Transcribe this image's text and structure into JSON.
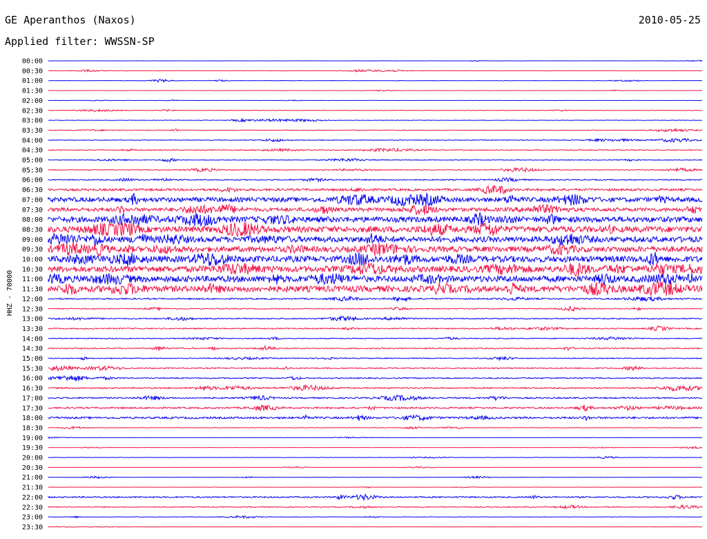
{
  "header": {
    "station": "GE Aperanthos (Naxos)",
    "date": "2010-05-25",
    "filter": "Applied filter: WWSSN-SP"
  },
  "chart_data": {
    "type": "line",
    "ylabel": "HHZ - 70000",
    "line_colors": [
      "#0000ee",
      "#ee1144"
    ],
    "rows": [
      {
        "time": "00:00",
        "activity": 0.05
      },
      {
        "time": "00:30",
        "activity": 0.15
      },
      {
        "time": "01:00",
        "activity": 0.15
      },
      {
        "time": "01:30",
        "activity": 0.08
      },
      {
        "time": "02:00",
        "activity": 0.1
      },
      {
        "time": "02:30",
        "activity": 0.18
      },
      {
        "time": "03:00",
        "activity": 0.15
      },
      {
        "time": "03:30",
        "activity": 0.22
      },
      {
        "time": "04:00",
        "activity": 0.25
      },
      {
        "time": "04:30",
        "activity": 0.3
      },
      {
        "time": "05:00",
        "activity": 0.25
      },
      {
        "time": "05:30",
        "activity": 0.28
      },
      {
        "time": "06:00",
        "activity": 0.35
      },
      {
        "time": "06:30",
        "activity": 0.55
      },
      {
        "time": "07:00",
        "activity": 0.85
      },
      {
        "time": "07:30",
        "activity": 0.75
      },
      {
        "time": "08:00",
        "activity": 0.95
      },
      {
        "time": "08:30",
        "activity": 1.0
      },
      {
        "time": "09:00",
        "activity": 0.95
      },
      {
        "time": "09:30",
        "activity": 0.95
      },
      {
        "time": "10:00",
        "activity": 1.0
      },
      {
        "time": "10:30",
        "activity": 1.0
      },
      {
        "time": "11:00",
        "activity": 1.0
      },
      {
        "time": "11:30",
        "activity": 1.0
      },
      {
        "time": "12:00",
        "activity": 0.4
      },
      {
        "time": "12:30",
        "activity": 0.3
      },
      {
        "time": "13:00",
        "activity": 0.35
      },
      {
        "time": "13:30",
        "activity": 0.35
      },
      {
        "time": "14:00",
        "activity": 0.3
      },
      {
        "time": "14:30",
        "activity": 0.35
      },
      {
        "time": "15:00",
        "activity": 0.3
      },
      {
        "time": "15:30",
        "activity": 0.35
      },
      {
        "time": "16:00",
        "activity": 0.35
      },
      {
        "time": "16:30",
        "activity": 0.4
      },
      {
        "time": "17:00",
        "activity": 0.4
      },
      {
        "time": "17:30",
        "activity": 0.45
      },
      {
        "time": "18:00",
        "activity": 0.5
      },
      {
        "time": "18:30",
        "activity": 0.2
      },
      {
        "time": "19:00",
        "activity": 0.1
      },
      {
        "time": "19:30",
        "activity": 0.1
      },
      {
        "time": "20:00",
        "activity": 0.12
      },
      {
        "time": "20:30",
        "activity": 0.08
      },
      {
        "time": "21:00",
        "activity": 0.12
      },
      {
        "time": "21:30",
        "activity": 0.08
      },
      {
        "time": "22:00",
        "activity": 0.4
      },
      {
        "time": "22:30",
        "activity": 0.3
      },
      {
        "time": "23:00",
        "activity": 0.15
      },
      {
        "time": "23:30",
        "activity": 0.1
      }
    ]
  }
}
